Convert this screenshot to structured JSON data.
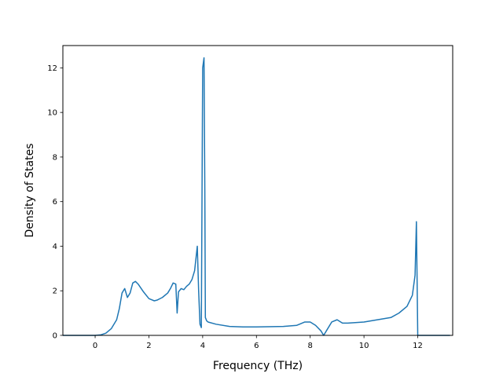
{
  "chart_data": {
    "type": "line",
    "title": "",
    "xlabel": "Frequency (THz)",
    "ylabel": "Density of States",
    "xlim": [
      -1.2,
      13.3
    ],
    "ylim": [
      0,
      13
    ],
    "xticks": [
      0,
      2,
      4,
      6,
      8,
      10,
      12
    ],
    "yticks": [
      0,
      2,
      4,
      6,
      8,
      10,
      12
    ],
    "grid": false,
    "line_color": "#1f77b4",
    "series": [
      {
        "x": [
          -1.2,
          -0.5,
          0.0,
          0.2,
          0.4,
          0.6,
          0.8,
          0.9,
          1.0,
          1.1,
          1.2,
          1.3,
          1.4,
          1.5,
          1.6,
          1.8,
          2.0,
          2.2,
          2.3,
          2.5,
          2.7,
          2.8,
          2.9,
          3.0,
          3.05,
          3.1,
          3.2,
          3.3,
          3.4,
          3.5,
          3.6,
          3.7,
          3.8,
          3.85,
          3.9,
          3.95,
          4.0,
          4.05,
          4.08,
          4.1,
          4.15,
          4.2,
          4.5,
          5.0,
          5.5,
          6.0,
          7.0,
          7.5,
          7.8,
          8.0,
          8.2,
          8.4,
          8.5,
          8.6,
          8.8,
          9.0,
          9.2,
          9.4,
          10.0,
          10.5,
          11.0,
          11.3,
          11.6,
          11.8,
          11.9,
          11.95,
          12.0,
          12.05,
          12.5,
          13.2
        ],
        "y": [
          0,
          0,
          0,
          0.02,
          0.1,
          0.3,
          0.7,
          1.2,
          1.9,
          2.1,
          1.7,
          1.9,
          2.35,
          2.42,
          2.3,
          1.95,
          1.65,
          1.55,
          1.58,
          1.7,
          1.9,
          2.1,
          2.35,
          2.3,
          1.0,
          1.95,
          2.1,
          2.05,
          2.2,
          2.3,
          2.5,
          2.9,
          4.0,
          2.0,
          0.5,
          0.35,
          12.0,
          12.45,
          6.5,
          0.8,
          0.65,
          0.6,
          0.5,
          0.4,
          0.38,
          0.38,
          0.4,
          0.45,
          0.6,
          0.6,
          0.45,
          0.2,
          0.0,
          0.2,
          0.6,
          0.7,
          0.55,
          0.55,
          0.6,
          0.7,
          0.8,
          1.0,
          1.3,
          1.8,
          2.7,
          5.1,
          0.0,
          0.0,
          0.0,
          0.0
        ]
      }
    ]
  }
}
